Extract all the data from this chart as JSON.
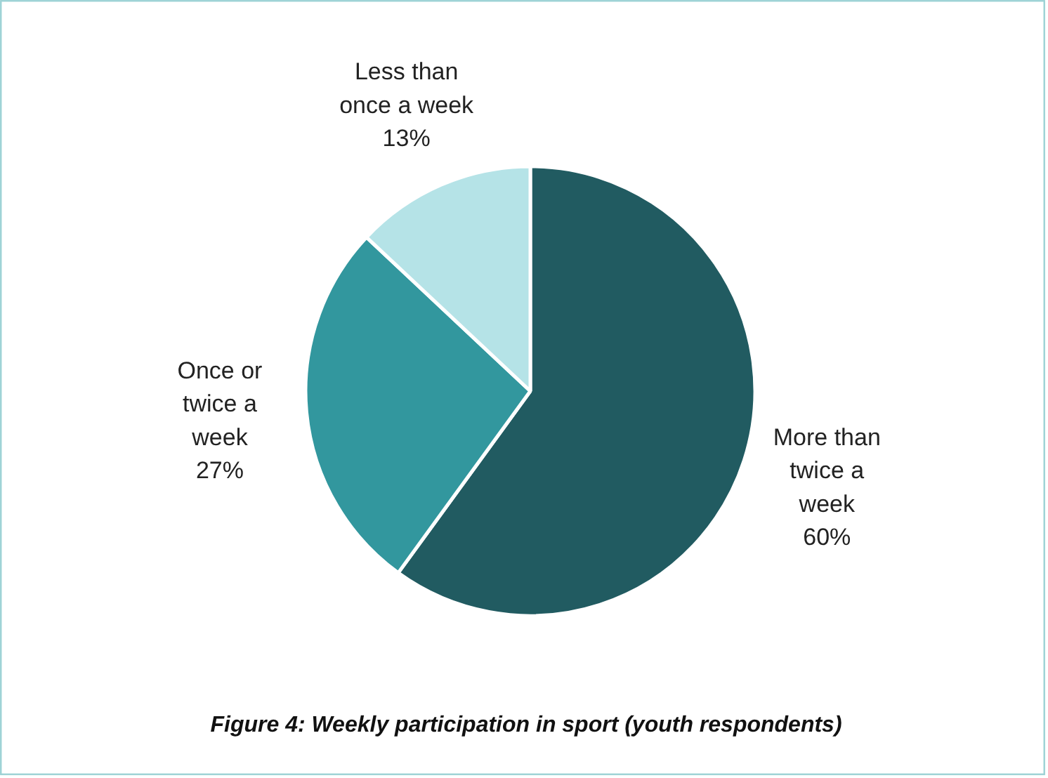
{
  "chart_data": {
    "type": "pie",
    "title": "Figure 4: Weekly participation in sport (youth respondents)",
    "categories": [
      "More than twice a week",
      "Once or twice a week",
      "Less than once a week"
    ],
    "values": [
      60,
      27,
      13
    ],
    "colors": [
      "#215b61",
      "#32979e",
      "#b5e3e7"
    ],
    "value_labels": [
      "60%",
      "27%",
      "13%"
    ]
  }
}
